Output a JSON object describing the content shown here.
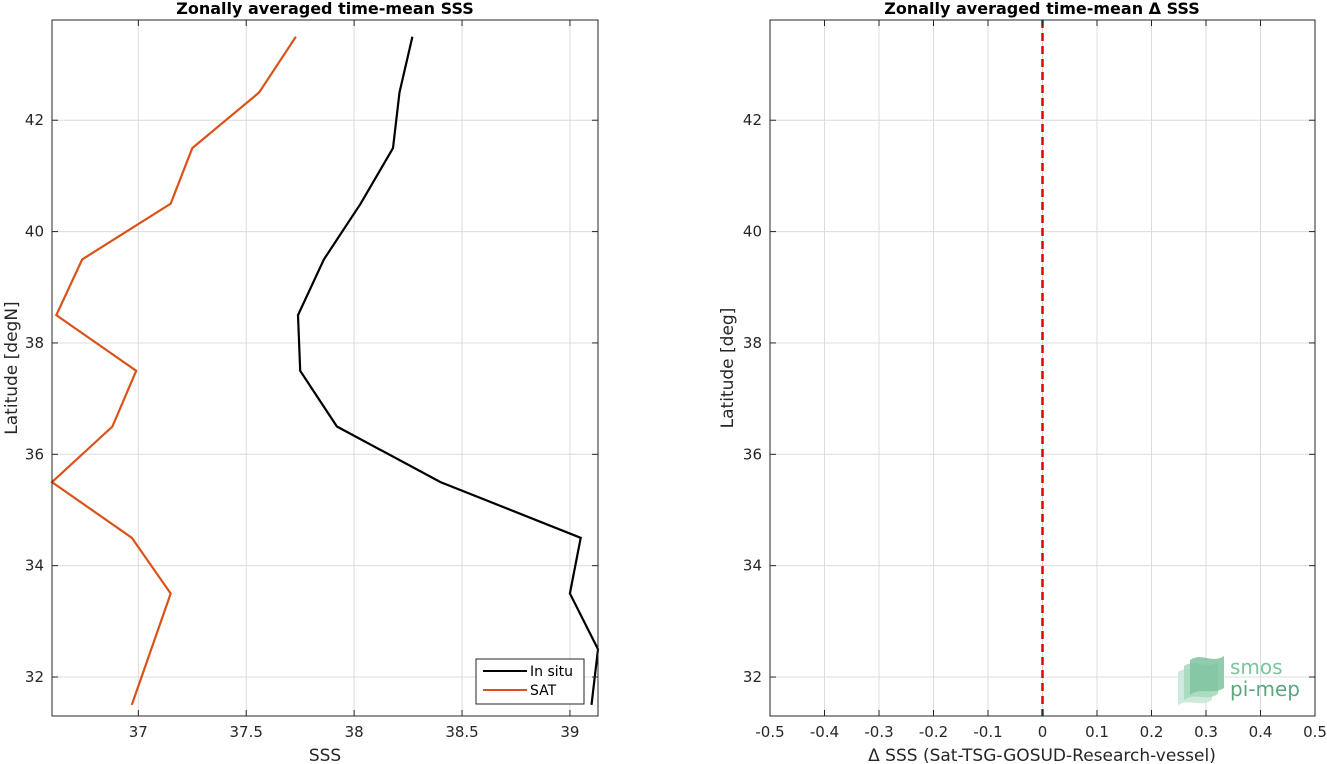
{
  "chart_data": [
    {
      "type": "line",
      "title": "Zonally averaged time-mean SSS",
      "xlabel": "SSS",
      "ylabel": "Latitude [degN]",
      "xlim": [
        36.6,
        39.13
      ],
      "ylim": [
        31.3,
        43.8
      ],
      "xticks": [
        37,
        37.5,
        38,
        38.5,
        39
      ],
      "xtick_labels": [
        "37",
        "37.5",
        "38",
        "38.5",
        "39"
      ],
      "yticks": [
        32,
        34,
        36,
        38,
        40,
        42
      ],
      "ytick_labels": [
        "32",
        "34",
        "36",
        "38",
        "40",
        "42"
      ],
      "grid": true,
      "legend_position": "bottom-right",
      "series": [
        {
          "name": "In situ",
          "color": "#000000",
          "points": [
            [
              39.1,
              31.5
            ],
            [
              39.13,
              32.5
            ],
            [
              39.0,
              33.5
            ],
            [
              39.05,
              34.5
            ],
            [
              38.4,
              35.5
            ],
            [
              37.92,
              36.5
            ],
            [
              37.75,
              37.5
            ],
            [
              37.74,
              38.5
            ],
            [
              37.86,
              39.5
            ],
            [
              38.03,
              40.5
            ],
            [
              38.18,
              41.5
            ],
            [
              38.21,
              42.5
            ],
            [
              38.27,
              43.5
            ]
          ]
        },
        {
          "name": "SAT",
          "color": "#d95319",
          "points": [
            [
              36.97,
              31.5
            ],
            [
              37.15,
              33.5
            ],
            [
              36.97,
              34.5
            ],
            [
              36.6,
              35.5
            ],
            [
              36.88,
              36.5
            ],
            [
              36.99,
              37.5
            ],
            [
              36.62,
              38.5
            ],
            [
              36.74,
              39.5
            ],
            [
              37.15,
              40.5
            ],
            [
              37.25,
              41.5
            ],
            [
              37.56,
              42.5
            ],
            [
              37.73,
              43.5
            ]
          ]
        }
      ]
    },
    {
      "type": "line",
      "title": "Zonally averaged time-mean Δ SSS",
      "xlabel": "Δ SSS (Sat-TSG-GOSUD-Research-vessel)",
      "ylabel": "Latitude [deg]",
      "xlim": [
        -0.5,
        0.5
      ],
      "ylim": [
        31.3,
        43.8
      ],
      "xticks": [
        -0.5,
        -0.4,
        -0.3,
        -0.2,
        -0.1,
        0,
        0.1,
        0.2,
        0.3,
        0.4,
        0.5
      ],
      "xtick_labels": [
        "-0.5",
        "-0.4",
        "-0.3",
        "-0.2",
        "-0.1",
        "0",
        "0.1",
        "0.2",
        "0.3",
        "0.4",
        "0.5"
      ],
      "yticks": [
        32,
        34,
        36,
        38,
        40,
        42
      ],
      "ytick_labels": [
        "32",
        "34",
        "36",
        "38",
        "40",
        "42"
      ],
      "grid": true,
      "reference_line": {
        "x": 0,
        "color": "#e60000",
        "style": "dashed"
      }
    }
  ],
  "logo": {
    "line1": "smos",
    "line2": "pi-mep"
  }
}
